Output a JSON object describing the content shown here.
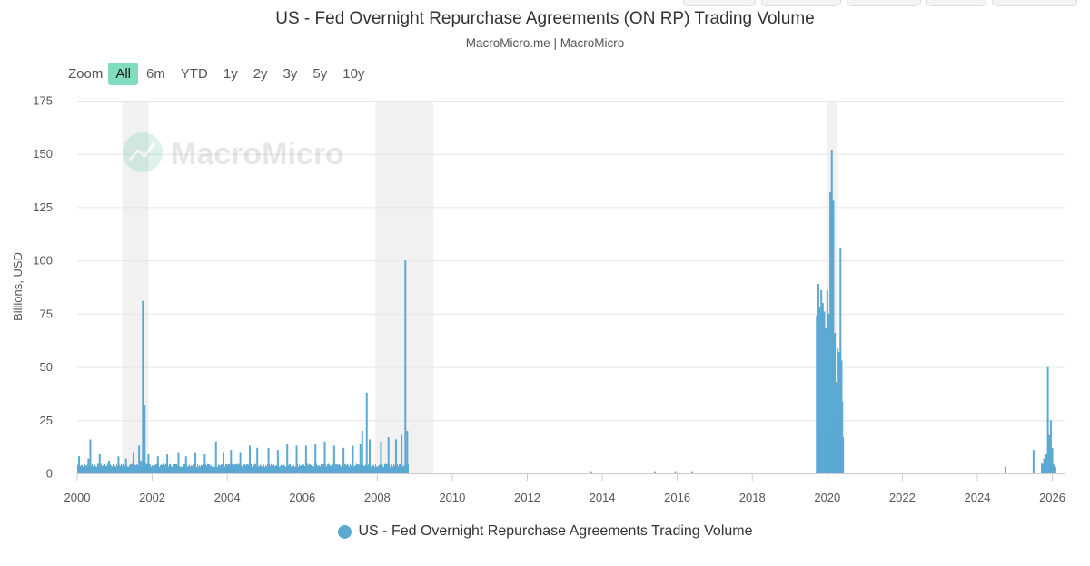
{
  "colors": {
    "series": "#5ba9d3",
    "recession": "#f1f1f1",
    "zoom_active": "#7fdcbf",
    "grid": "#e6e6e6"
  },
  "zoom": {
    "label": "Zoom",
    "buttons": [
      "All",
      "6m",
      "YTD",
      "1y",
      "2y",
      "3y",
      "5y",
      "10y"
    ],
    "active": "All"
  },
  "watermark": {
    "text": "MacroMicro"
  },
  "chart_data": {
    "type": "bar",
    "title": "US - Fed Overnight Repurchase Agreements (ON RP) Trading Volume",
    "subtitle": "MacroMicro.me | MacroMicro",
    "xlabel": "",
    "ylabel": "Billions, USD",
    "xlim": [
      2000,
      2026.35
    ],
    "ylim": [
      0,
      175
    ],
    "x_ticks": [
      2000,
      2002,
      2004,
      2006,
      2008,
      2010,
      2012,
      2014,
      2016,
      2018,
      2020,
      2022,
      2024,
      2026
    ],
    "y_ticks": [
      0,
      25,
      50,
      75,
      100,
      125,
      150,
      175
    ],
    "grid": true,
    "legend_position": "bottom-center",
    "recession_bands": [
      {
        "start": 2001.2,
        "end": 2001.9
      },
      {
        "start": 2007.95,
        "end": 2009.5
      },
      {
        "start": 2020.0,
        "end": 2020.25
      }
    ],
    "series": [
      {
        "name": "US - Fed Overnight Repurchase Agreements Trading Volume",
        "points": [
          [
            2000.05,
            8
          ],
          [
            2000.3,
            7
          ],
          [
            2000.6,
            9
          ],
          [
            2000.85,
            6
          ],
          [
            2000.35,
            16
          ],
          [
            2001.1,
            8
          ],
          [
            2001.3,
            7
          ],
          [
            2001.5,
            10
          ],
          [
            2001.65,
            13
          ],
          [
            2001.7,
            6
          ],
          [
            2001.9,
            9
          ],
          [
            2001.75,
            81
          ],
          [
            2001.8,
            32
          ],
          [
            2002.15,
            8
          ],
          [
            2002.4,
            9
          ],
          [
            2002.7,
            10
          ],
          [
            2002.9,
            8
          ],
          [
            2003.15,
            10
          ],
          [
            2003.4,
            9
          ],
          [
            2003.7,
            15
          ],
          [
            2003.9,
            10
          ],
          [
            2004.1,
            11
          ],
          [
            2004.35,
            10
          ],
          [
            2004.6,
            13
          ],
          [
            2004.8,
            12
          ],
          [
            2005.1,
            12
          ],
          [
            2005.35,
            11
          ],
          [
            2005.6,
            14
          ],
          [
            2005.85,
            13
          ],
          [
            2006.1,
            13
          ],
          [
            2006.35,
            14
          ],
          [
            2006.6,
            15
          ],
          [
            2006.85,
            13
          ],
          [
            2007.1,
            12
          ],
          [
            2007.35,
            13
          ],
          [
            2007.55,
            14
          ],
          [
            2007.8,
            16
          ],
          [
            2007.6,
            20
          ],
          [
            2007.72,
            38
          ],
          [
            2008.1,
            15
          ],
          [
            2008.3,
            17
          ],
          [
            2008.5,
            16
          ],
          [
            2008.65,
            18
          ],
          [
            2008.75,
            100
          ],
          [
            2008.8,
            20
          ],
          [
            2013.7,
            1
          ],
          [
            2015.4,
            1
          ],
          [
            2015.95,
            1
          ],
          [
            2016.4,
            1
          ],
          [
            2019.72,
            74
          ],
          [
            2019.76,
            89
          ],
          [
            2019.8,
            78
          ],
          [
            2019.84,
            86
          ],
          [
            2019.88,
            80
          ],
          [
            2019.92,
            76
          ],
          [
            2019.96,
            68
          ],
          [
            2020.0,
            86
          ],
          [
            2020.04,
            75
          ],
          [
            2020.08,
            132
          ],
          [
            2020.12,
            152
          ],
          [
            2020.16,
            128
          ],
          [
            2020.2,
            66
          ],
          [
            2020.24,
            43
          ],
          [
            2020.28,
            42
          ],
          [
            2020.32,
            57
          ],
          [
            2020.35,
            106
          ],
          [
            2020.38,
            53
          ],
          [
            2020.42,
            17
          ],
          [
            2024.75,
            3
          ],
          [
            2025.5,
            11
          ],
          [
            2025.72,
            5
          ],
          [
            2025.78,
            7
          ],
          [
            2025.84,
            9
          ],
          [
            2025.88,
            50
          ],
          [
            2025.92,
            18
          ],
          [
            2025.96,
            25
          ],
          [
            2026.0,
            12
          ],
          [
            2026.04,
            4
          ],
          [
            2026.08,
            3
          ]
        ],
        "baseline_band": {
          "start": 2000.0,
          "end": 2008.82,
          "min": 3,
          "max": 5
        },
        "baseline_band_2020": {
          "start": 2019.72,
          "end": 2020.42,
          "min": 15,
          "max": 60
        },
        "baseline_band_2025": {
          "start": 2025.72,
          "end": 2026.08,
          "min": 3,
          "max": 6
        }
      }
    ]
  }
}
